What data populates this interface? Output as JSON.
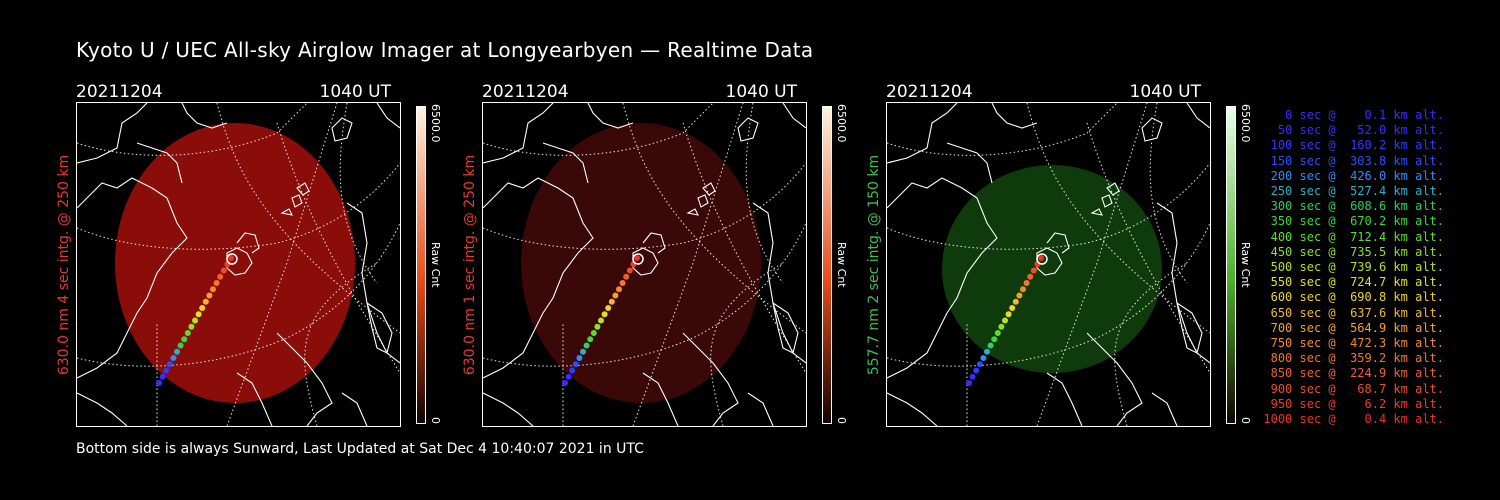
{
  "title": "Kyoto U / UEC All-sky Airglow Imager at Longyearbyen — Realtime Data",
  "footer": "Bottom side is always Sunward, Last Updated at Sat Dec  4 10:40:07 2021 in UTC",
  "panels": [
    {
      "date": "20211204",
      "time": "1040 UT",
      "side_label": "630.0 nm 4 sec intg. @ 250 km",
      "cbar_max": "6500.0",
      "cbar_unit": "Raw Cnt",
      "cbar_min": "0",
      "color": "#e83a2c",
      "disk": "#8a0d0a",
      "disk_opacity": 0.95
    },
    {
      "date": "20211204",
      "time": "1040 UT",
      "side_label": "630.0 nm 1 sec intg. @ 250 km",
      "cbar_max": "6500.0",
      "cbar_unit": "Raw Cnt",
      "cbar_min": "0",
      "color": "#e83a2c",
      "disk": "#3a0806",
      "disk_opacity": 0.95
    },
    {
      "date": "20211204",
      "time": "1040 UT",
      "side_label": "557.7 nm 2 sec intg. @ 150 km",
      "cbar_max": "6500.0",
      "cbar_unit": "Raw Cnt",
      "cbar_min": "0",
      "color": "#3ec24a",
      "disk": "#0f3a0c",
      "disk_opacity": 0.95
    }
  ],
  "legend": [
    {
      "text": "   0 sec @    0.1 km alt.",
      "color": "#3a2cff"
    },
    {
      "text": "  50 sec @   52.0 km alt.",
      "color": "#3a2cff"
    },
    {
      "text": " 100 sec @  160.2 km alt.",
      "color": "#2b3dff"
    },
    {
      "text": " 150 sec @  303.8 km alt.",
      "color": "#2950ff"
    },
    {
      "text": " 200 sec @  426.0 km alt.",
      "color": "#2d8cff"
    },
    {
      "text": " 250 sec @  527.4 km alt.",
      "color": "#2ab0c8"
    },
    {
      "text": " 300 sec @  608.6 km alt.",
      "color": "#2ecf6a"
    },
    {
      "text": " 350 sec @  670.2 km alt.",
      "color": "#3ad83a"
    },
    {
      "text": " 400 sec @  712.4 km alt.",
      "color": "#5ede2c"
    },
    {
      "text": " 450 sec @  735.5 km alt.",
      "color": "#8be02a"
    },
    {
      "text": " 500 sec @  739.6 km alt.",
      "color": "#b8e02a"
    },
    {
      "text": " 550 sec @  724.7 km alt.",
      "color": "#e0e02c"
    },
    {
      "text": " 600 sec @  690.8 km alt.",
      "color": "#f0d22e"
    },
    {
      "text": " 650 sec @  637.6 km alt.",
      "color": "#f4b830"
    },
    {
      "text": " 700 sec @  564.9 km alt.",
      "color": "#f4a030"
    },
    {
      "text": " 750 sec @  472.3 km alt.",
      "color": "#f48a30"
    },
    {
      "text": " 800 sec @  359.2 km alt.",
      "color": "#f47530"
    },
    {
      "text": " 850 sec @  224.9 km alt.",
      "color": "#f06030"
    },
    {
      "text": " 900 sec @   68.7 km alt.",
      "color": "#ee4c2c"
    },
    {
      "text": " 950 sec @    6.2 km alt.",
      "color": "#ec3c2a"
    },
    {
      "text": "1000 sec @    0.4 km alt.",
      "color": "#ea3428"
    }
  ]
}
